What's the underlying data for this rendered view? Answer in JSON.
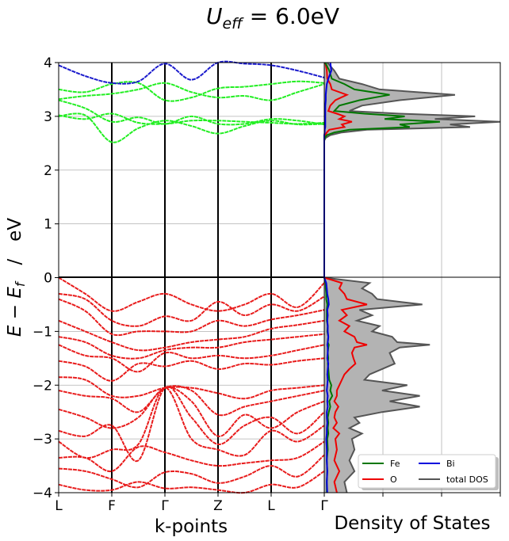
{
  "chart_data": [
    {
      "type": "line",
      "panel": "band structure",
      "title": "U_eff = 6.0eV",
      "title_parts": {
        "symbol": "U",
        "subscript": "eff",
        "value": " = 6.0eV"
      },
      "xlabel": "k-points",
      "ylabel_parts": {
        "e": "E",
        "minus": " − ",
        "ef": "E",
        "ef_sub": "f",
        "sep": "   /   ",
        "unit": "eV"
      },
      "ylim": [
        -4,
        4
      ],
      "y_ticks": [
        -4,
        -3,
        -2,
        -1,
        0,
        1,
        2,
        3,
        4
      ],
      "y_tick_labels": [
        "−4",
        "−3",
        "−2",
        "−1",
        "0",
        "1",
        "2",
        "3",
        "4"
      ],
      "k_points": [
        "L",
        "F",
        "Γ",
        "Z",
        "L",
        "Γ"
      ],
      "grid": true,
      "conduction_color": "#22ee22",
      "valence_color": "#e81c1c",
      "bi_color": "#1a1acc",
      "conduction_bands": [
        [
          3.0,
          3.02,
          2.52,
          2.78,
          2.92,
          2.82,
          2.68,
          2.82,
          2.92,
          2.85,
          2.86
        ],
        [
          3.02,
          2.95,
          3.05,
          2.88,
          2.86,
          2.92,
          2.92,
          2.9,
          2.88,
          2.86,
          2.88
        ],
        [
          3.3,
          3.15,
          2.9,
          2.98,
          2.86,
          3.0,
          2.86,
          2.86,
          2.95,
          2.92,
          2.85
        ],
        [
          3.32,
          3.38,
          3.42,
          3.5,
          3.62,
          3.45,
          3.35,
          3.38,
          3.3,
          3.45,
          3.6
        ],
        [
          3.5,
          3.45,
          3.6,
          3.62,
          3.3,
          3.35,
          3.52,
          3.55,
          3.6,
          3.65,
          3.62
        ]
      ],
      "upper_band": [
        3.95,
        3.75,
        3.62,
        3.65,
        3.98,
        3.68,
        4.0,
        3.98,
        3.95,
        3.85,
        3.72
      ],
      "valence_bands": [
        [
          0.0,
          -0.3,
          -0.62,
          -0.45,
          -0.3,
          -0.5,
          -0.62,
          -0.5,
          -0.3,
          -0.55,
          -0.1
        ],
        [
          -0.3,
          -0.4,
          -0.8,
          -0.9,
          -0.72,
          -0.8,
          -0.45,
          -0.7,
          -0.5,
          -0.62,
          -0.35
        ],
        [
          -0.4,
          -0.62,
          -1.05,
          -1.0,
          -1.0,
          -1.0,
          -0.8,
          -0.9,
          -0.78,
          -0.7,
          -0.6
        ],
        [
          -0.8,
          -1.0,
          -1.2,
          -1.35,
          -1.3,
          -1.2,
          -1.15,
          -1.1,
          -0.95,
          -0.88,
          -0.8
        ],
        [
          -1.1,
          -1.2,
          -1.45,
          -1.5,
          -1.35,
          -1.3,
          -1.3,
          -1.2,
          -1.15,
          -1.1,
          -1.05
        ],
        [
          -1.25,
          -1.45,
          -1.5,
          -1.75,
          -1.4,
          -1.5,
          -1.45,
          -1.5,
          -1.45,
          -1.35,
          -1.25
        ],
        [
          -1.55,
          -1.65,
          -1.92,
          -1.6,
          -1.65,
          -1.55,
          -1.7,
          -1.6,
          -1.62,
          -1.55,
          -1.5
        ],
        [
          -1.85,
          -1.9,
          -2.2,
          -2.2,
          -2.05,
          -2.05,
          -2.15,
          -2.25,
          -2.1,
          -2.05,
          -2.0
        ],
        [
          -2.1,
          -2.2,
          -2.25,
          -2.5,
          -2.05,
          -2.1,
          -2.55,
          -2.4,
          -2.3,
          -2.2,
          -2.1
        ],
        [
          -2.45,
          -2.6,
          -2.8,
          -2.6,
          -2.05,
          -2.3,
          -2.95,
          -2.55,
          -2.8,
          -2.5,
          -2.3
        ],
        [
          -2.85,
          -2.95,
          -2.75,
          -3.4,
          -2.05,
          -2.6,
          -3.1,
          -2.75,
          -2.6,
          -2.9,
          -2.5
        ],
        [
          -3.05,
          -3.35,
          -3.2,
          -3.1,
          -2.05,
          -3.0,
          -3.2,
          -3.3,
          -2.85,
          -3.05,
          -2.75
        ],
        [
          -3.35,
          -3.35,
          -3.6,
          -3.15,
          -3.25,
          -3.4,
          -3.5,
          -3.45,
          -3.4,
          -3.35,
          -3.05
        ],
        [
          -3.55,
          -3.6,
          -3.75,
          -3.9,
          -3.62,
          -3.65,
          -3.82,
          -3.7,
          -3.5,
          -3.7,
          -3.3
        ],
        [
          -3.85,
          -3.95,
          -3.95,
          -3.8,
          -3.92,
          -3.9,
          -3.95,
          -4.0,
          -3.85,
          -3.9,
          -3.6
        ]
      ]
    },
    {
      "type": "area",
      "panel": "density of states",
      "xlabel": "Density of States",
      "ylim": [
        -4,
        4
      ],
      "grid": true,
      "legend_position": "lower-right",
      "legend_columns": 2,
      "series": [
        {
          "name": "Fe",
          "color": "#007700"
        },
        {
          "name": "Bi",
          "color": "#0000dd"
        },
        {
          "name": "O",
          "color": "#ee0000"
        },
        {
          "name": "total DOS",
          "color": "#555555",
          "fill": "#b3b3b3"
        }
      ],
      "dos_energy": [
        4.0,
        3.85,
        3.7,
        3.6,
        3.5,
        3.4,
        3.3,
        3.2,
        3.1,
        3.05,
        3.0,
        2.95,
        2.9,
        2.85,
        2.8,
        2.75,
        2.7,
        2.65,
        2.6,
        2.55,
        0.0,
        -0.1,
        -0.2,
        -0.3,
        -0.4,
        -0.5,
        -0.6,
        -0.7,
        -0.8,
        -0.9,
        -1.0,
        -1.1,
        -1.2,
        -1.25,
        -1.3,
        -1.4,
        -1.5,
        -1.6,
        -1.7,
        -1.8,
        -1.9,
        -2.0,
        -2.1,
        -2.2,
        -2.3,
        -2.4,
        -2.5,
        -2.6,
        -2.7,
        -2.8,
        -2.9,
        -3.0,
        -3.2,
        -3.4,
        -3.6,
        -3.8,
        -4.0
      ],
      "dos_total": [
        0.06,
        0.2,
        0.3,
        0.75,
        1.1,
        2.6,
        1.5,
        0.75,
        0.5,
        1.5,
        3.0,
        2.2,
        3.5,
        2.5,
        2.9,
        0.85,
        0.35,
        0.12,
        0.03,
        0.0,
        0.0,
        0.9,
        0.75,
        0.95,
        1.05,
        1.95,
        0.7,
        0.95,
        0.65,
        1.1,
        0.95,
        1.35,
        1.45,
        2.1,
        1.5,
        1.3,
        1.35,
        1.4,
        1.15,
        0.9,
        0.8,
        1.65,
        1.15,
        1.9,
        1.3,
        1.9,
        1.15,
        0.6,
        0.7,
        0.5,
        0.75,
        0.55,
        0.6,
        0.5,
        0.6,
        0.4,
        0.45
      ],
      "dos_fe": [
        0.02,
        0.1,
        0.15,
        0.4,
        0.6,
        1.3,
        0.7,
        0.3,
        0.2,
        0.8,
        1.6,
        1.2,
        2.3,
        1.5,
        1.7,
        0.5,
        0.2,
        0.05,
        0.01,
        0.0,
        0.0,
        0.03,
        0.03,
        0.04,
        0.04,
        0.06,
        0.05,
        0.05,
        0.05,
        0.07,
        0.06,
        0.08,
        0.07,
        0.09,
        0.08,
        0.07,
        0.08,
        0.07,
        0.08,
        0.09,
        0.1,
        0.14,
        0.12,
        0.16,
        0.1,
        0.12,
        0.09,
        0.07,
        0.08,
        0.07,
        0.08,
        0.06,
        0.07,
        0.05,
        0.06,
        0.05,
        0.05
      ],
      "dos_o": [
        0.02,
        0.05,
        0.06,
        0.12,
        0.15,
        0.45,
        0.22,
        0.12,
        0.08,
        0.25,
        0.4,
        0.3,
        0.55,
        0.35,
        0.4,
        0.1,
        0.05,
        0.02,
        0.0,
        0.0,
        0.0,
        0.35,
        0.3,
        0.4,
        0.45,
        0.85,
        0.35,
        0.45,
        0.3,
        0.5,
        0.4,
        0.6,
        0.65,
        0.85,
        0.6,
        0.55,
        0.58,
        0.62,
        0.5,
        0.4,
        0.35,
        0.3,
        0.25,
        0.25,
        0.2,
        0.28,
        0.22,
        0.2,
        0.25,
        0.18,
        0.3,
        0.22,
        0.25,
        0.2,
        0.3,
        0.2,
        0.25
      ],
      "dos_bi": [
        0.12,
        0.14,
        0.08,
        0.05,
        0.04,
        0.03,
        0.03,
        0.02,
        0.02,
        0.02,
        0.02,
        0.02,
        0.02,
        0.02,
        0.02,
        0.01,
        0.01,
        0.0,
        0.0,
        0.0,
        0.0,
        0.04,
        0.05,
        0.06,
        0.08,
        0.09,
        0.06,
        0.07,
        0.06,
        0.07,
        0.07,
        0.08,
        0.07,
        0.06,
        0.07,
        0.07,
        0.06,
        0.08,
        0.07,
        0.06,
        0.07,
        0.06,
        0.05,
        0.07,
        0.06,
        0.07,
        0.05,
        0.05,
        0.06,
        0.05,
        0.05,
        0.04,
        0.05,
        0.05,
        0.06,
        0.05,
        0.06
      ]
    }
  ]
}
